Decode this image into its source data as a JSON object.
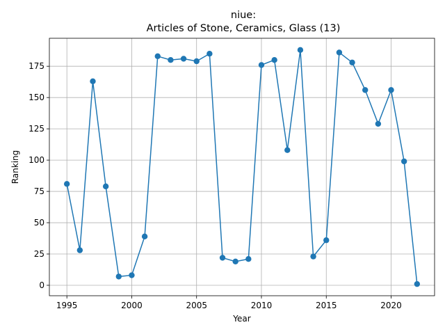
{
  "chart_data": {
    "type": "line",
    "title_line1": "niue:",
    "title_line2": "Articles of Stone, Ceramics, Glass (13)",
    "xlabel": "Year",
    "ylabel": "Ranking",
    "xlim": [
      1993.65,
      2023.35
    ],
    "ylim": [
      -8.35,
      197.35
    ],
    "xticks": [
      1995,
      2000,
      2005,
      2010,
      2015,
      2020
    ],
    "yticks": [
      0,
      25,
      50,
      75,
      100,
      125,
      150,
      175
    ],
    "grid": true,
    "color": "#1f77b4",
    "marker": "circle",
    "x": [
      1995,
      1996,
      1997,
      1998,
      1999,
      2000,
      2001,
      2002,
      2003,
      2004,
      2005,
      2006,
      2007,
      2008,
      2009,
      2010,
      2011,
      2012,
      2013,
      2014,
      2015,
      2016,
      2017,
      2018,
      2019,
      2020,
      2021,
      2022
    ],
    "y": [
      81,
      28,
      163,
      79,
      7,
      8,
      39,
      183,
      180,
      181,
      179,
      185,
      22,
      19,
      21,
      176,
      180,
      108,
      188,
      23,
      36,
      186,
      178,
      156,
      129,
      156,
      99,
      1
    ]
  }
}
